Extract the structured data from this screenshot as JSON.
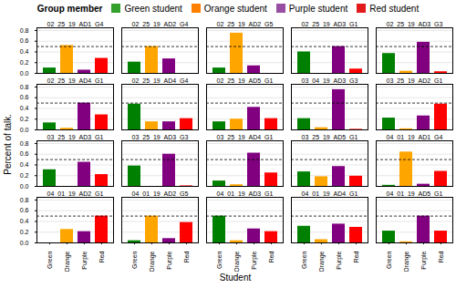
{
  "chart_data": {
    "type": "bar",
    "xlabel": "Student",
    "ylabel": "Percent of talk.",
    "categories": [
      "Green",
      "Orange",
      "Purple",
      "Red"
    ],
    "colors": [
      "#33a02c",
      "#ff7f00",
      "#984ea3",
      "#e31a1c"
    ],
    "ylim": [
      0.0,
      0.85
    ],
    "yticks": [
      {
        "value": 0.0,
        "label": "0.0"
      },
      0.2,
      0.4,
      0.6,
      0.8
    ],
    "grid": true,
    "reference_line": {
      "value": 0.5,
      "line_style": "dashed"
    },
    "legend": "top",
    "legend_title": "Group member",
    "legend_labels": [
      "Green student",
      "Orange student",
      "Purple student",
      "Red student"
    ],
    "subplots": [
      {
        "title": "02_25_19_AD1_G4",
        "values": [
          0.1,
          0.52,
          0.06,
          0.28
        ]
      },
      {
        "title": "02_25_19_AD2_G4",
        "values": [
          0.21,
          0.5,
          0.27,
          0.0
        ]
      },
      {
        "title": "02_25_19_AD2_G5",
        "values": [
          0.1,
          0.75,
          0.14,
          0.0
        ]
      },
      {
        "title": "02_25_19_AD3_G1",
        "values": [
          0.4,
          0.0,
          0.5,
          0.08
        ]
      },
      {
        "title": "02_25_19_AD3_G3",
        "values": [
          0.37,
          0.04,
          0.58,
          0.03
        ]
      },
      {
        "title": "02_25_19_AD4_G1",
        "values": [
          0.13,
          0.03,
          0.5,
          0.28
        ]
      },
      {
        "title": "02_25_19_AD4_G4",
        "values": [
          0.48,
          0.15,
          0.15,
          0.21
        ]
      },
      {
        "title": "02_25_19_AD5_G1",
        "values": [
          0.15,
          0.2,
          0.42,
          0.21
        ]
      },
      {
        "title": "03_04_19_AD3_G3",
        "values": [
          0.21,
          0.04,
          0.75,
          0.01
        ]
      },
      {
        "title": "03_25_19_AD2_G1",
        "values": [
          0.22,
          0.02,
          0.26,
          0.48
        ]
      },
      {
        "title": "03_25_19_AD3_G1",
        "values": [
          0.31,
          0.0,
          0.45,
          0.22
        ]
      },
      {
        "title": "03_25_19_AD3_G3",
        "values": [
          0.38,
          0.0,
          0.6,
          0.01
        ]
      },
      {
        "title": "03_25_19_AD4_G1",
        "values": [
          0.1,
          0.03,
          0.62,
          0.25
        ]
      },
      {
        "title": "03_25_19_AD5_G1",
        "values": [
          0.27,
          0.18,
          0.37,
          0.19
        ]
      },
      {
        "title": "04_01_19_AD1_G4",
        "values": [
          0.02,
          0.64,
          0.04,
          0.28
        ]
      },
      {
        "title": "04_01_19_AD2_G1",
        "values": [
          0.0,
          0.25,
          0.21,
          0.5
        ]
      },
      {
        "title": "04_01_19_AD2_G5",
        "values": [
          0.04,
          0.5,
          0.08,
          0.38
        ]
      },
      {
        "title": "04_01_19_AD3_G1",
        "values": [
          0.5,
          0.04,
          0.26,
          0.21
        ]
      },
      {
        "title": "04_01_19_AD4_G1",
        "values": [
          0.31,
          0.06,
          0.35,
          0.29
        ]
      },
      {
        "title": "04_01_19_AD5_G1",
        "values": [
          0.22,
          0.02,
          0.5,
          0.22
        ]
      }
    ]
  }
}
